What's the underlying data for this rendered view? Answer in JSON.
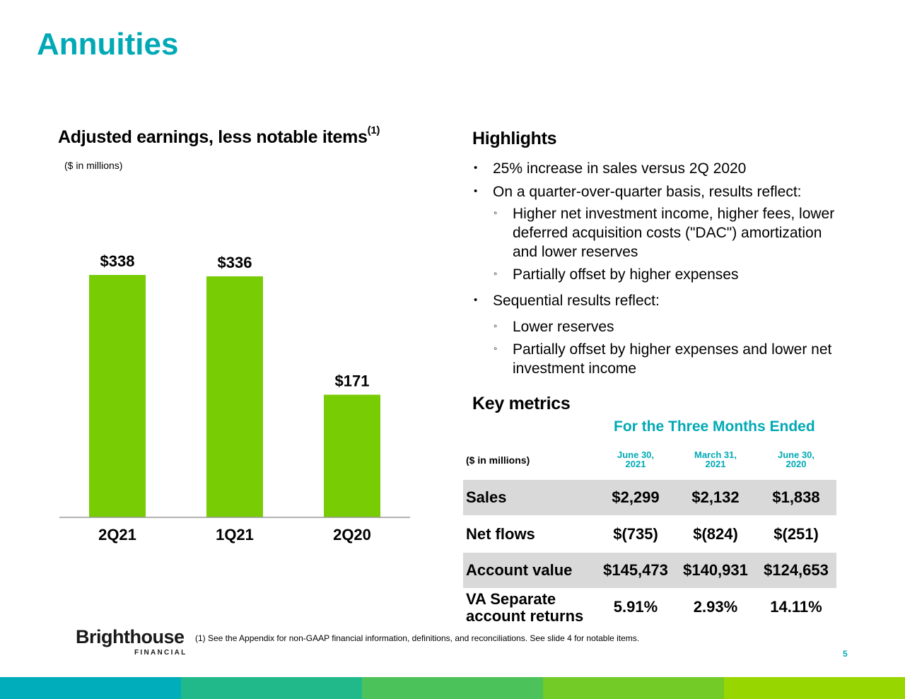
{
  "page": {
    "title": "Annuities",
    "page_number": "5",
    "footnote": "(1) See the Appendix for non-GAAP financial information, definitions, and reconciliations. See slide 4 for notable items.",
    "logo": {
      "word": "Brighthouse",
      "sub": "FINANCIAL"
    }
  },
  "chart_data": {
    "type": "bar",
    "title": "Adjusted earnings, less notable items",
    "title_footnote_marker": "(1)",
    "unit_label": "($ in millions)",
    "categories": [
      "2Q21",
      "1Q21",
      "2Q20"
    ],
    "values": [
      338,
      336,
      171
    ],
    "value_labels": [
      "$338",
      "$336",
      "$171"
    ],
    "ylim": [
      0,
      400
    ],
    "grid": false,
    "bar_color": "#77cc04"
  },
  "highlights": {
    "title": "Highlights",
    "items": [
      {
        "level": 1,
        "lines": [
          "25% increase in sales versus 2Q 2020"
        ]
      },
      {
        "level": 1,
        "lines": [
          "On a quarter-over-quarter basis, results reflect:"
        ]
      },
      {
        "level": 2,
        "lines": [
          "Higher net investment income, higher fees, lower",
          "deferred acquisition costs (\"DAC\") amortization",
          "and lower reserves"
        ]
      },
      {
        "level": 2,
        "lines": [
          "Partially offset by higher expenses"
        ]
      },
      {
        "level": 1,
        "lines": [
          "Sequential results reflect:"
        ]
      },
      {
        "level": 2,
        "lines": [
          "Lower reserves"
        ]
      },
      {
        "level": 2,
        "lines": [
          "Partially offset by higher expenses and lower net",
          "investment income"
        ]
      }
    ]
  },
  "key_metrics": {
    "title": "Key metrics",
    "period_header": "For the Three Months Ended",
    "unit_label": "($ in millions)",
    "columns": [
      {
        "line1": "June 30,",
        "line2": "2021"
      },
      {
        "line1": "March 31,",
        "line2": "2021"
      },
      {
        "line1": "June 30,",
        "line2": "2020"
      }
    ],
    "rows": [
      {
        "label": [
          "Sales"
        ],
        "values": [
          "$2,299",
          "$2,132",
          "$1,838"
        ],
        "shaded": true
      },
      {
        "label": [
          "Net flows"
        ],
        "values": [
          "$(735)",
          "$(824)",
          "$(251)"
        ],
        "shaded": false
      },
      {
        "label": [
          "Account value"
        ],
        "values": [
          "$145,473",
          "$140,931",
          "$124,653"
        ],
        "shaded": true
      },
      {
        "label": [
          "VA Separate",
          "account returns"
        ],
        "values": [
          "5.91%",
          "2.93%",
          "14.11%"
        ],
        "shaded": false
      }
    ]
  },
  "colors": {
    "accent": "#00a9b5",
    "stripe": [
      "#00adbb",
      "#22b98a",
      "#4cc25a",
      "#72cb26",
      "#98d600"
    ]
  }
}
